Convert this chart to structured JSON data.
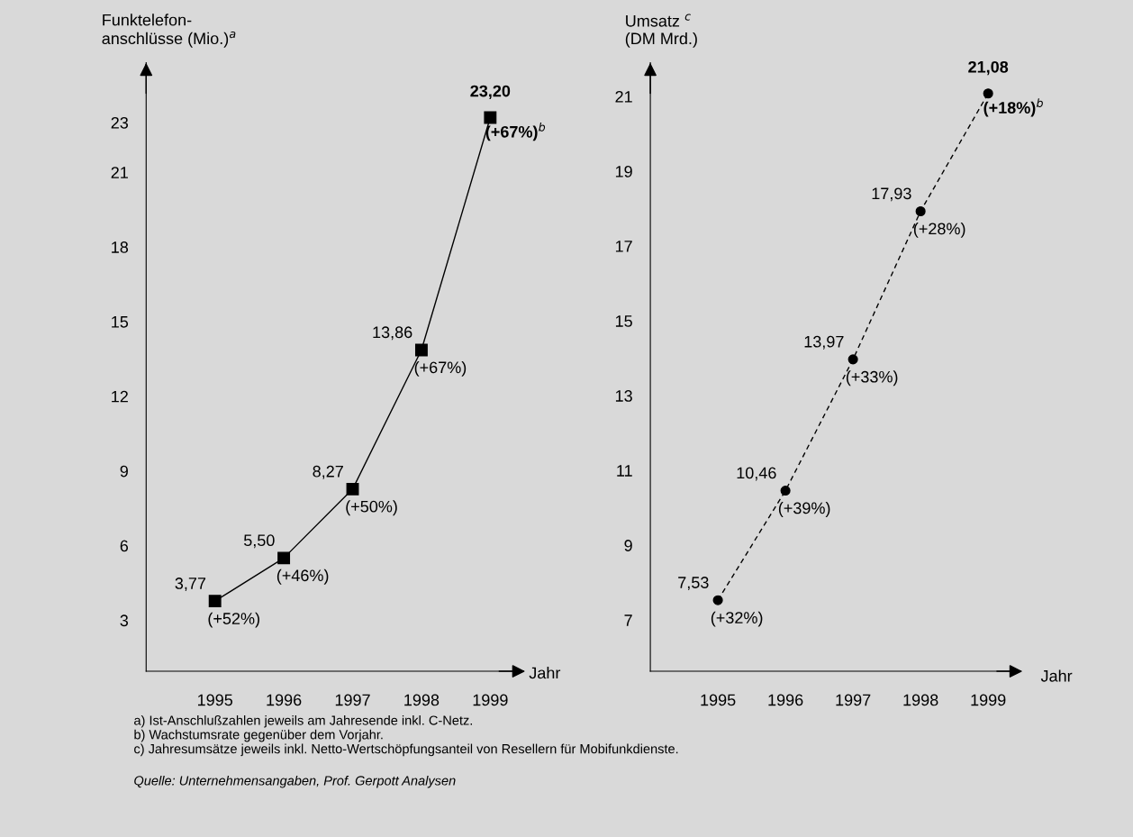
{
  "chart_data": [
    {
      "type": "line",
      "ylabel": "Funktelefon-\nanschlüsse (Mio.)$^{a}$",
      "xlabel": "Jahr",
      "categories": [
        "1995",
        "1996",
        "1997",
        "1998",
        "1999"
      ],
      "series": [
        {
          "color": "#000000",
          "values": [
            3.77,
            5.5,
            8.27,
            13.86,
            23.2
          ]
        }
      ],
      "marker": "square",
      "line_style": "solid",
      "value_labels": [
        "3,77",
        "5,50",
        "8,27",
        "13,86",
        "23,20"
      ],
      "ylim": [
        0.95,
        25.4
      ],
      "yticks": [
        3,
        6,
        9,
        12,
        15,
        18,
        21,
        23
      ],
      "grid": false,
      "legend": false,
      "annotations": [
        {
          "text": "(+52%)",
          "x": "1995",
          "y": 3.77
        },
        {
          "text": "(+46%)",
          "x": "1996",
          "y": 5.5
        },
        {
          "text": "(+50%)",
          "x": "1997",
          "y": 8.27
        },
        {
          "text": "(+67%)",
          "x": "1998",
          "y": 13.86
        },
        {
          "text": "(+67%)$^{b}$",
          "x": "1999",
          "y": 23.2
        },
        "a) Ist-Anschlußzahlen jeweils am Jahresende inkl. C-Netz.",
        "b) Wachstumsrate gegenüber dem Vorjahr.",
        "c) Jahresumsätze jeweils inkl. Netto-Wertschöpfungsanteil von Resellern für Mobifunkdienste.",
        "Quelle: Unternehmensangaben, Prof. Gerpott Analysen"
      ]
    },
    {
      "type": "line",
      "ylabel": "Umsatz $^{c}$\n(DM Mrd.)",
      "xlabel": "Jahr",
      "categories": [
        "1995",
        "1996",
        "1997",
        "1998",
        "1999"
      ],
      "series": [
        {
          "color": "#000000",
          "values": [
            7.53,
            10.46,
            13.97,
            17.93,
            21.08
          ]
        }
      ],
      "marker": "circle",
      "line_style": "dashed",
      "value_labels": [
        "7,53",
        "10,46",
        "13,97",
        "17,93",
        "21,08"
      ],
      "ylim": [
        5.63,
        21.9
      ],
      "yticks": [
        7,
        9,
        11,
        13,
        15,
        17,
        19,
        21
      ],
      "grid": false,
      "legend": false,
      "annotations": [
        {
          "text": "(+32%)",
          "x": "1995",
          "y": 7.53
        },
        {
          "text": "(+39%)",
          "x": "1996",
          "y": 10.46
        },
        {
          "text": "(+33%)",
          "x": "1997",
          "y": 13.97
        },
        {
          "text": "(+28%)",
          "x": "1998",
          "y": 17.93
        },
        {
          "text": "(+18%)$^{b}$",
          "x": "1999",
          "y": 21.08
        }
      ]
    }
  ]
}
